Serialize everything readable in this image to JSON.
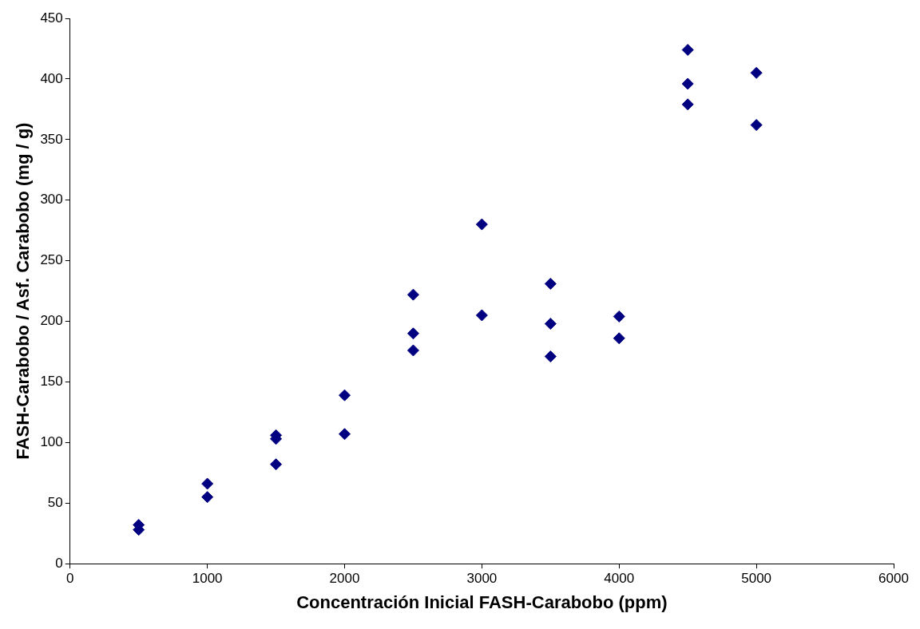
{
  "chart_data": {
    "type": "scatter",
    "xlabel": "Concentración Inicial FASH-Carabobo (ppm)",
    "ylabel": "FASH-Carabobo / Asf. Carabobo (mg / g)",
    "x": [
      500,
      500,
      1000,
      1000,
      1500,
      1500,
      1500,
      2000,
      2000,
      2500,
      2500,
      2500,
      3000,
      3000,
      3500,
      3500,
      3500,
      4000,
      4000,
      4500,
      4500,
      4500,
      5000,
      5000
    ],
    "series": [
      {
        "color": "#000080",
        "values": [
          32,
          28,
          66,
          55,
          106,
          103,
          82,
          139,
          107,
          222,
          190,
          176,
          280,
          205,
          231,
          198,
          171,
          204,
          186,
          424,
          396,
          379,
          405,
          362
        ]
      }
    ],
    "xlim": [
      0,
      6000
    ],
    "xticks": [
      0,
      1000,
      2000,
      3000,
      4000,
      5000,
      6000
    ],
    "ylim": [
      0,
      450
    ],
    "yticks": [
      0,
      50,
      100,
      150,
      200,
      250,
      300,
      350,
      400,
      450
    ],
    "grid": false,
    "legend": false,
    "marker": "diamond"
  }
}
